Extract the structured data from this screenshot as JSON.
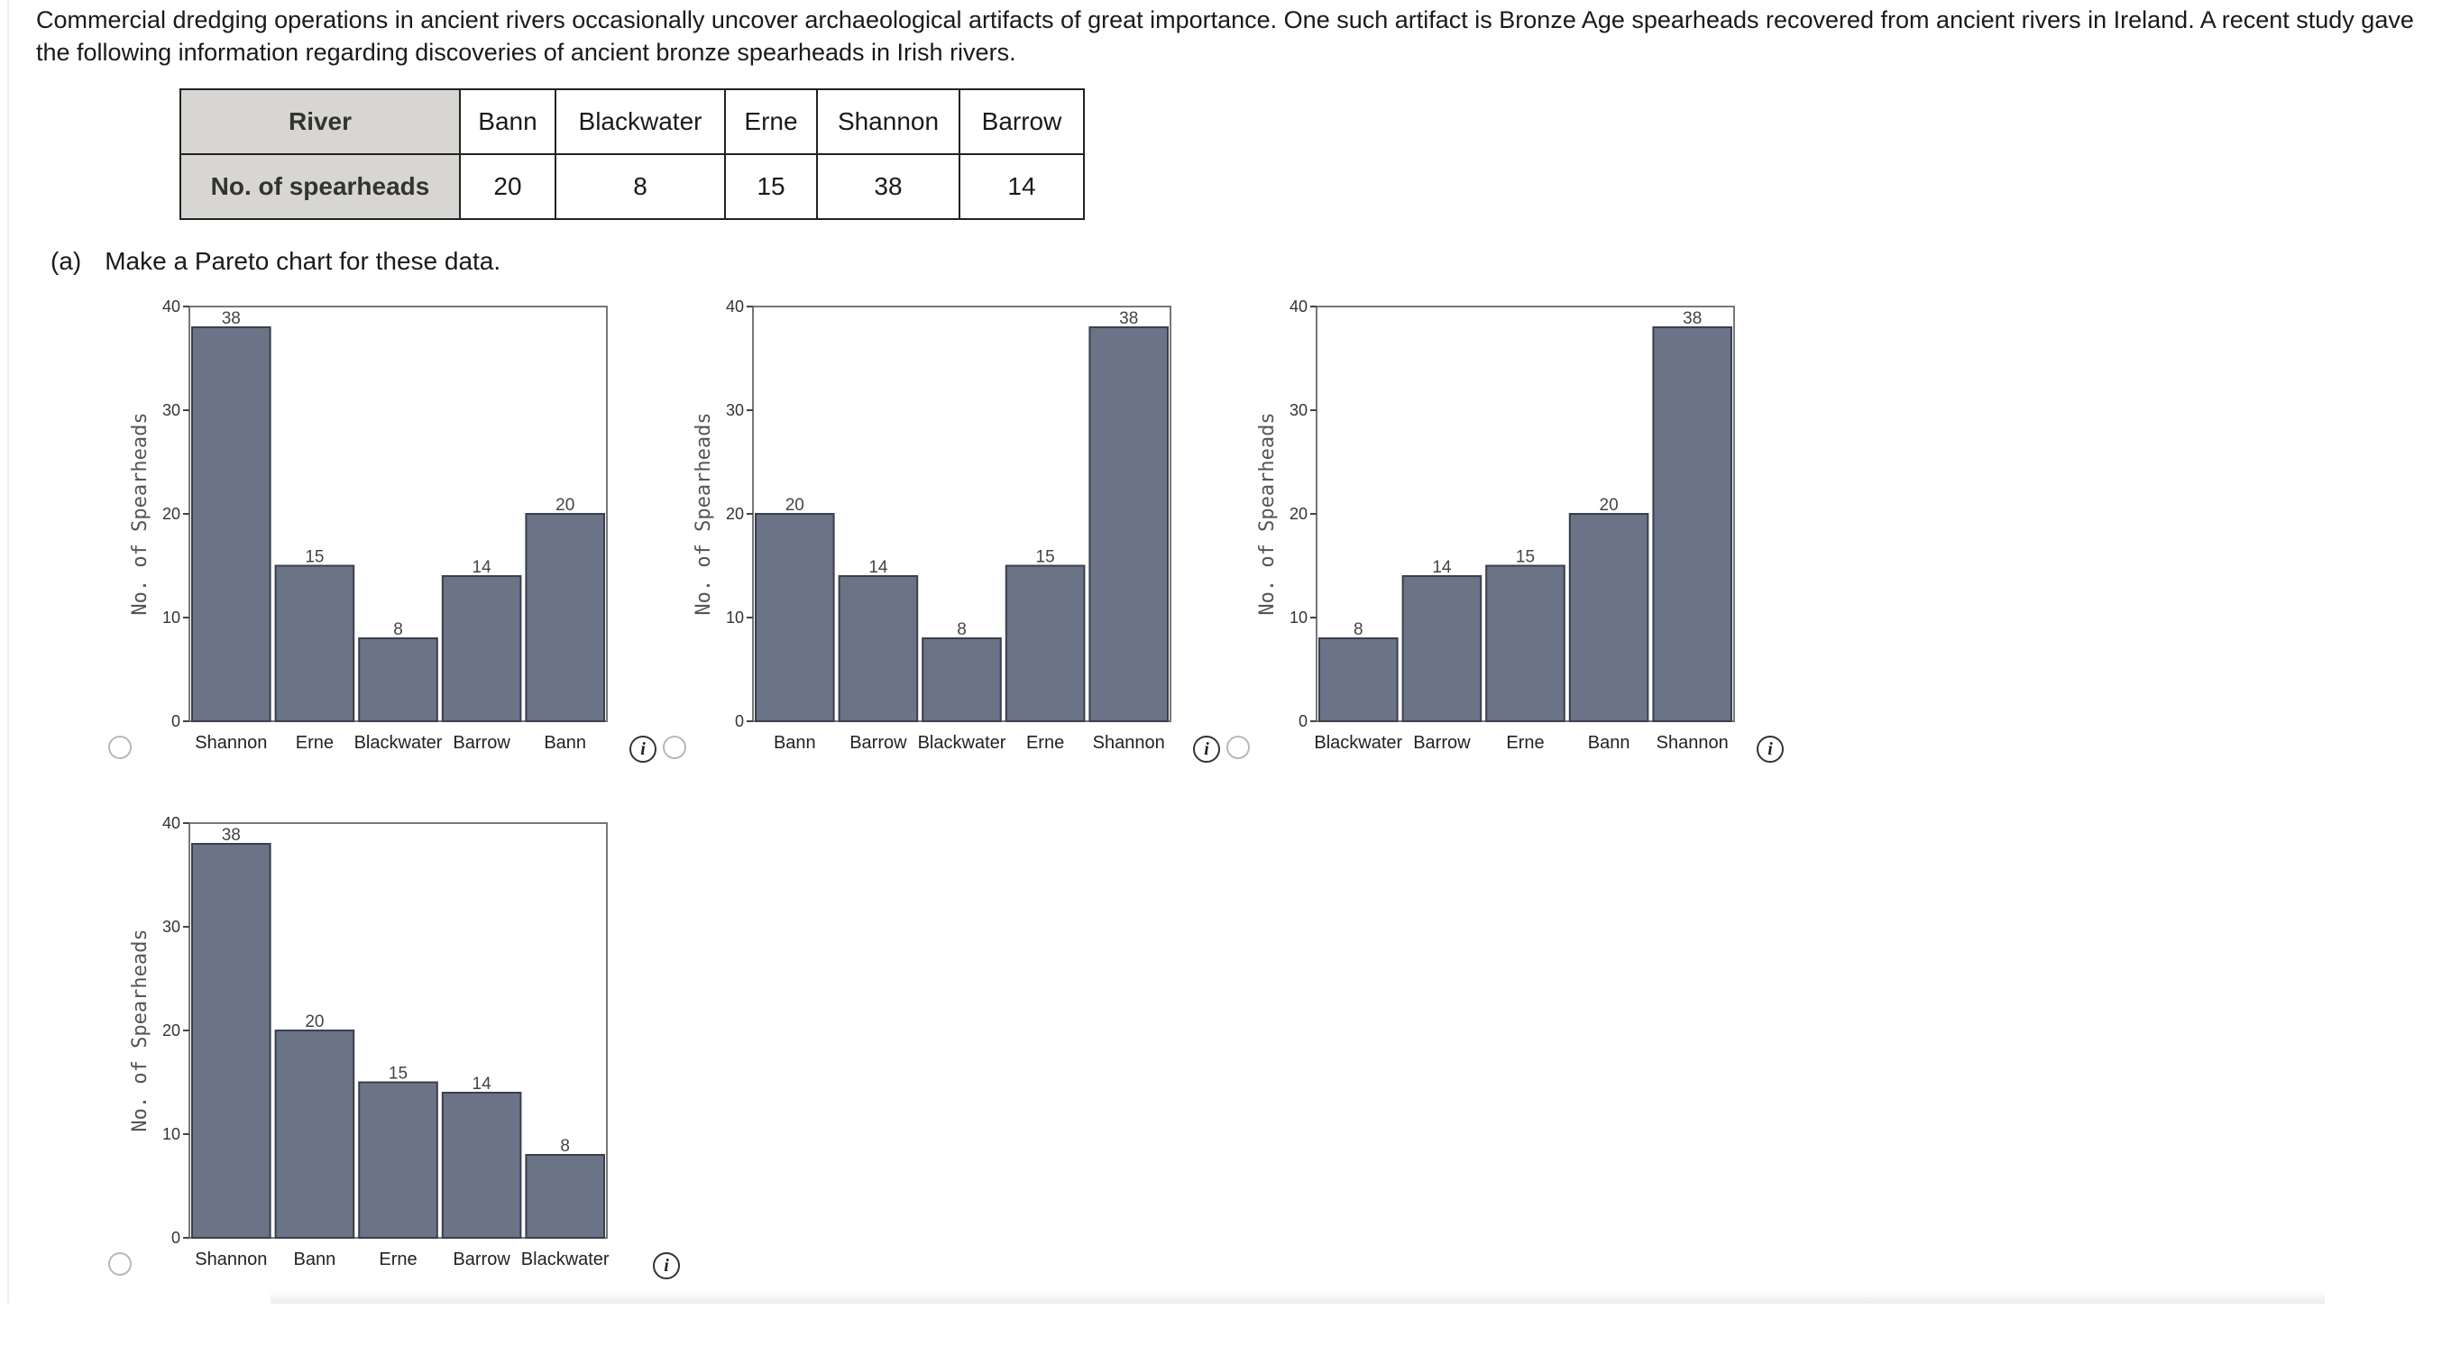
{
  "intro_text": "Commercial dredging operations in ancient rivers occasionally uncover archaeological artifacts of great importance. One such artifact is Bronze Age spearheads recovered from ancient rivers in Ireland. A recent study gave the following information regarding discoveries of ancient bronze spearheads in Irish rivers.",
  "table": {
    "row_header_1": "River",
    "row_header_2": "No. of spearheads",
    "rivers": [
      "Bann",
      "Blackwater",
      "Erne",
      "Shannon",
      "Barrow"
    ],
    "counts": [
      "20",
      "8",
      "15",
      "38",
      "14"
    ]
  },
  "question": {
    "tag": "(a)",
    "text": "Make a Pareto chart for these data."
  },
  "info_label": "i",
  "colors": {
    "bar": "#6b7387",
    "bar_outline": "#3a3f4d",
    "axis": "#444444",
    "frame": "#777777"
  },
  "chart_data": [
    {
      "type": "bar",
      "title": "",
      "xlabel": "",
      "ylabel": "No. of Spearheads",
      "ylim": [
        0,
        40
      ],
      "yticks": [
        0,
        10,
        20,
        30,
        40
      ],
      "categories": [
        "Shannon",
        "Erne",
        "Blackwater",
        "Barrow",
        "Bann"
      ],
      "values": [
        38,
        15,
        8,
        14,
        20
      ]
    },
    {
      "type": "bar",
      "title": "",
      "xlabel": "",
      "ylabel": "No. of Spearheads",
      "ylim": [
        0,
        40
      ],
      "yticks": [
        0,
        10,
        20,
        30,
        40
      ],
      "categories": [
        "Bann",
        "Barrow",
        "Blackwater",
        "Erne",
        "Shannon"
      ],
      "values": [
        20,
        14,
        8,
        15,
        38
      ]
    },
    {
      "type": "bar",
      "title": "",
      "xlabel": "",
      "ylabel": "No. of Spearheads",
      "ylim": [
        0,
        40
      ],
      "yticks": [
        0,
        10,
        20,
        30,
        40
      ],
      "categories": [
        "Blackwater",
        "Barrow",
        "Erne",
        "Bann",
        "Shannon"
      ],
      "values": [
        8,
        14,
        15,
        20,
        38
      ]
    },
    {
      "type": "bar",
      "title": "",
      "xlabel": "",
      "ylabel": "No. of Spearheads",
      "ylim": [
        0,
        40
      ],
      "yticks": [
        0,
        10,
        20,
        30,
        40
      ],
      "categories": [
        "Shannon",
        "Bann",
        "Erne",
        "Barrow",
        "Blackwater"
      ],
      "values": [
        38,
        20,
        15,
        14,
        8
      ]
    }
  ]
}
